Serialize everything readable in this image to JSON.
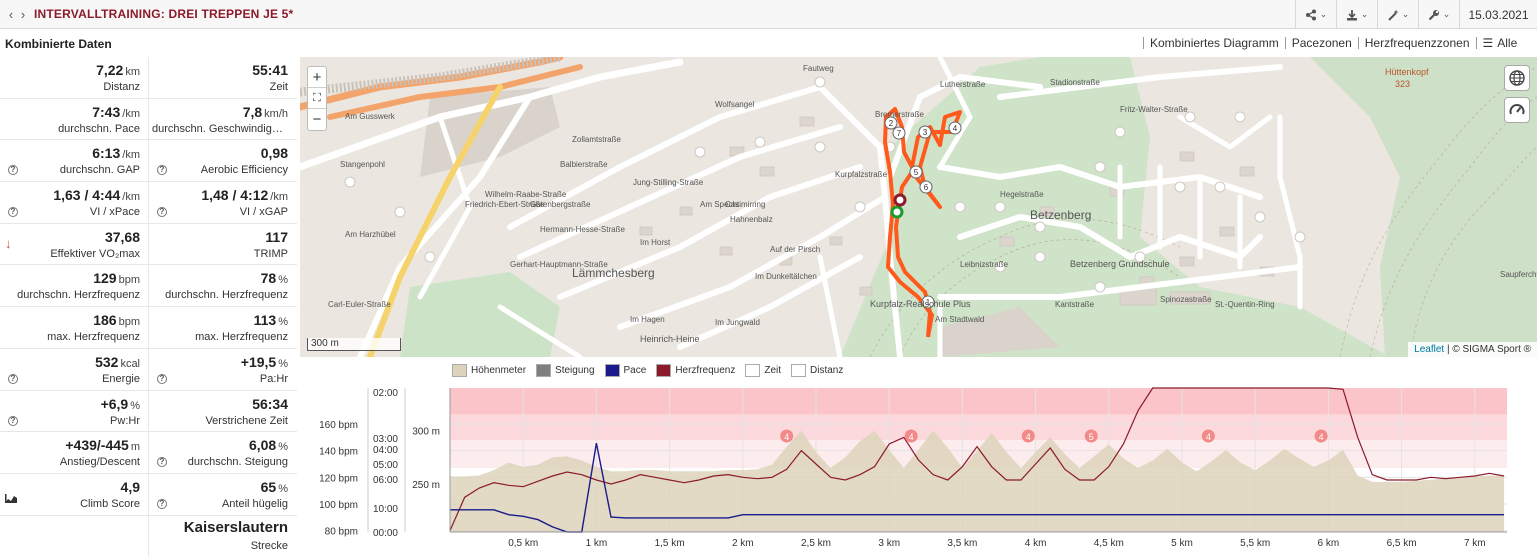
{
  "header": {
    "title": "INTERVALLTRAINING: DREI TREPPEN JE 5*",
    "date": "15.03.2021"
  },
  "panel": {
    "title": "Kombinierte Daten",
    "rows": [
      [
        {
          "value": "7,22",
          "unit": "km",
          "label": "Distanz"
        },
        {
          "value": "55:41",
          "unit": "",
          "label": "Zeit"
        }
      ],
      [
        {
          "value": "7:43",
          "unit": "/km",
          "label": "durchschn. Pace"
        },
        {
          "value": "7,8",
          "unit": "km/h",
          "label": "durchschn. Geschwindigkeit"
        }
      ],
      [
        {
          "value": "6:13",
          "unit": "/km",
          "label": "durchschn. GAP",
          "help": true
        },
        {
          "value": "0,98",
          "unit": "",
          "label": "Aerobic Efficiency",
          "help": true
        }
      ],
      [
        {
          "value": "1,63 / 4:44",
          "unit": "/km",
          "label": "VI / xPace",
          "help": true
        },
        {
          "value": "1,48 / 4:12",
          "unit": "/km",
          "label": "VI / xGAP",
          "help": true
        }
      ],
      [
        {
          "value": "37,68",
          "unit": "",
          "label": "Effektiver VO₂max",
          "arrow": true
        },
        {
          "value": "117",
          "unit": "",
          "label": "TRIMP"
        }
      ],
      [
        {
          "value": "129",
          "unit": "bpm",
          "label": "durchschn. Herzfrequenz"
        },
        {
          "value": "78",
          "unit": "%",
          "label": "durchschn. Herzfrequenz"
        }
      ],
      [
        {
          "value": "186",
          "unit": "bpm",
          "label": "max. Herzfrequenz"
        },
        {
          "value": "113",
          "unit": "%",
          "label": "max. Herzfrequenz"
        }
      ],
      [
        {
          "value": "532",
          "unit": "kcal",
          "label": "Energie",
          "help": true
        },
        {
          "value": "+19,5",
          "unit": "%",
          "label": "Pa:Hr",
          "help": true
        }
      ],
      [
        {
          "value": "+6,9",
          "unit": "%",
          "label": "Pw:Hr",
          "help": true
        },
        {
          "value": "56:34",
          "unit": "",
          "label": "Verstrichene Zeit"
        }
      ],
      [
        {
          "value": "+439/-445",
          "unit": "m",
          "label": "Anstieg/Descent"
        },
        {
          "value": "6,08",
          "unit": "%",
          "label": "durchschn. Steigung",
          "help": true
        }
      ],
      [
        {
          "value": "4,9",
          "unit": "",
          "label": "Climb Score",
          "climb": true
        },
        {
          "value": "65",
          "unit": "%",
          "label": "Anteil hügelig",
          "help": true
        }
      ]
    ],
    "place": {
      "name": "Kaiserslautern",
      "label": "Strecke"
    }
  },
  "view_tabs": [
    "Kombiniertes Diagramm",
    "Pacezonen",
    "Herzfrequenzzonen",
    "Alle"
  ],
  "map": {
    "scale_label": "300 m",
    "attribution_link": "Leaflet",
    "attribution_text": " | © SIGMA Sport ®",
    "place_labels": [
      "Lämmchesberg",
      "Betzenberg",
      "Betzenberg Grundschule",
      "Kurpfalz-Realschule Plus",
      "Heinrich-Heine",
      "Hüttenkopf",
      "323",
      "Am Gusswerk",
      "Stangenpohl",
      "Wolfsangel",
      "Kurpfalzstraße",
      "Im Horst",
      "Im Dunkeltälchen",
      "Im Jungwald",
      "Auf der Pirsch",
      "Casimirring",
      "Hahnenbalz",
      "Stadionstraße",
      "Hegelstraße",
      "Kantstraße",
      "Leibnizstraße",
      "Spinozastraße",
      "St.-Quentin-Ring",
      "Bremerstraße",
      "Am Stadtwald",
      "Saupferchtal",
      "Fautweg",
      "Jung-Stilling-Straße",
      "Zollamtstraße",
      "Wilhelm-Raabe-Straße",
      "Gutenbergstraße",
      "Hermann-Hesse-Straße",
      "Balbierstraße",
      "Friedrich-Ebert-Straße",
      "Fritz-Walter-Straße",
      "Im Hagen",
      "Am Harzhübel",
      "Carl-Euler-Straße",
      "Gerhart-Hauptmann-Straße",
      "Lutherstraße",
      "Am Specht"
    ],
    "markers": [
      "1",
      "2",
      "3",
      "4",
      "5",
      "6",
      "7"
    ]
  },
  "chart_legend": [
    {
      "name": "Höhenmeter",
      "color": "#ddd3bb"
    },
    {
      "name": "Steigung",
      "color": "#7f7f7f"
    },
    {
      "name": "Pace",
      "color": "#1a1a8c"
    },
    {
      "name": "Herzfrequenz",
      "color": "#8b1a2b"
    },
    {
      "name": "Zeit",
      "color": "#ffffff"
    },
    {
      "name": "Distanz",
      "color": "#ffffff"
    }
  ],
  "chart_data": {
    "type": "line",
    "x": [
      0,
      0.1,
      0.2,
      0.3,
      0.4,
      0.5,
      0.6,
      0.7,
      0.8,
      0.9,
      1.0,
      1.1,
      1.2,
      1.3,
      1.4,
      1.5,
      1.6,
      1.7,
      1.8,
      1.9,
      2.0,
      2.1,
      2.2,
      2.3,
      2.4,
      2.5,
      2.6,
      2.7,
      2.8,
      2.9,
      3.0,
      3.1,
      3.2,
      3.3,
      3.4,
      3.5,
      3.6,
      3.7,
      3.8,
      3.9,
      4.0,
      4.1,
      4.2,
      4.3,
      4.4,
      4.5,
      4.6,
      4.7,
      4.8,
      4.9,
      5.0,
      5.1,
      5.2,
      5.3,
      5.4,
      5.5,
      5.6,
      5.7,
      5.8,
      5.9,
      6.0,
      6.1,
      6.2,
      6.3,
      6.4,
      6.5,
      6.6,
      6.7,
      6.8,
      6.9,
      7.0,
      7.1,
      7.2
    ],
    "x_ticks": [
      "0,5 km",
      "1 km",
      "1,5 km",
      "2 km",
      "2,5 km",
      "3 km",
      "3,5 km",
      "4 km",
      "4,5 km",
      "5 km",
      "5,5 km",
      "6 km",
      "6,5 km",
      "7 km"
    ],
    "x_tick_values": [
      0.5,
      1,
      1.5,
      2,
      2.5,
      3,
      3.5,
      4,
      4.5,
      5,
      5.5,
      6,
      6.5,
      7
    ],
    "xlim": [
      0,
      7.22
    ],
    "hr_axis": {
      "ticks": [
        "80 bpm",
        "100 bpm",
        "120 bpm",
        "140 bpm",
        "160 bpm"
      ],
      "values": [
        80,
        100,
        120,
        140,
        160
      ],
      "ylim": [
        79,
        187
      ]
    },
    "pace_axis": {
      "ticks": [
        "00:00",
        "06:00",
        "05:00",
        "04:00",
        "10:00",
        "03:00",
        "02:00"
      ],
      "values": [
        0,
        0.4,
        0.33,
        0.45,
        0.1,
        0.2,
        0.05
      ]
    },
    "elevation_axis": {
      "ticks": [
        "250 m",
        "300 m"
      ],
      "values": [
        250,
        300
      ],
      "ylim": [
        205,
        340
      ]
    },
    "zone_markers": [
      {
        "x": 2.3,
        "label": "4"
      },
      {
        "x": 3.15,
        "label": "4"
      },
      {
        "x": 3.95,
        "label": "4"
      },
      {
        "x": 4.38,
        "label": "5"
      },
      {
        "x": 5.18,
        "label": "4"
      },
      {
        "x": 5.95,
        "label": "4"
      }
    ],
    "series": [
      {
        "name": "Herzfrequenz",
        "values": [
          80,
          105,
          112,
          116,
          114,
          113,
          117,
          121,
          124,
          122,
          118,
          115,
          118,
          122,
          120,
          118,
          116,
          118,
          121,
          122,
          120,
          119,
          120,
          126,
          140,
          130,
          120,
          118,
          122,
          128,
          145,
          150,
          133,
          122,
          118,
          128,
          143,
          128,
          118,
          118,
          130,
          142,
          126,
          118,
          118,
          128,
          145,
          170,
          188,
          188,
          188,
          188,
          188,
          188,
          188,
          188,
          188,
          188,
          188,
          188,
          188,
          186,
          150,
          122,
          118,
          118,
          118,
          120,
          119,
          120,
          121,
          123,
          121
        ]
      },
      {
        "name": "Pace",
        "values": [
          420,
          420,
          420,
          420,
          360,
          340,
          300,
          210,
          140,
          90,
          1240,
          330,
          320,
          320,
          320,
          320,
          320,
          320,
          320,
          320,
          360,
          360,
          360,
          360,
          360,
          360,
          360,
          360,
          360,
          360,
          360,
          360,
          360,
          360,
          360,
          360,
          360,
          360,
          360,
          360,
          360,
          360,
          360,
          360,
          360,
          360,
          360,
          360,
          360,
          360,
          360,
          360,
          360,
          360,
          360,
          360,
          360,
          360,
          360,
          360,
          360,
          360,
          360,
          360,
          360,
          360,
          360,
          360,
          360,
          360,
          360,
          360,
          360
        ]
      },
      {
        "name": "Höhenmeter",
        "values": [
          257,
          257,
          258,
          263,
          270,
          266,
          268,
          275,
          276,
          272,
          266,
          262,
          262,
          263,
          263,
          262,
          262,
          262,
          262,
          263,
          263,
          264,
          268,
          285,
          300,
          280,
          265,
          275,
          290,
          300,
          282,
          265,
          282,
          300,
          284,
          265,
          281,
          298,
          280,
          265,
          280,
          294,
          278,
          265,
          276,
          287,
          274,
          265,
          272,
          283,
          270,
          262,
          271,
          282,
          270,
          263,
          272,
          283,
          274,
          266,
          272,
          282,
          258,
          252,
          252,
          252,
          253,
          254,
          255,
          256,
          257,
          258,
          258
        ]
      }
    ]
  }
}
